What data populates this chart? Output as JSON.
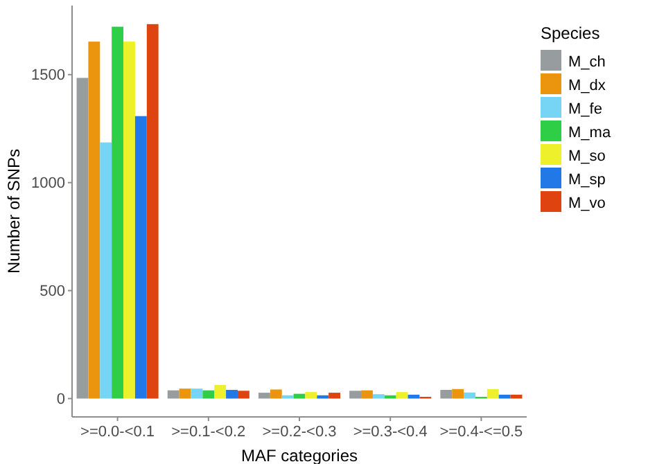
{
  "chart_data": {
    "type": "bar",
    "xlabel": "MAF categories",
    "ylabel": "Number of SNPs",
    "legend_title": "Species",
    "legend": "right",
    "categories": [
      ">=0.0-<0.1",
      ">=0.1-<0.2",
      ">=0.2-<0.3",
      ">=0.3-<0.4",
      ">=0.4-<=0.5"
    ],
    "ylim": [
      -85,
      1820
    ],
    "yticks": [
      0,
      500,
      1000,
      1500
    ],
    "grid": false,
    "series": [
      {
        "name": "M_ch",
        "color": "#979c9e",
        "values": [
          1485,
          38,
          27,
          36,
          40
        ]
      },
      {
        "name": "M_dx",
        "color": "#eb950f",
        "values": [
          1653,
          46,
          42,
          38,
          44
        ]
      },
      {
        "name": "M_fe",
        "color": "#76d5f5",
        "values": [
          1186,
          46,
          15,
          20,
          28
        ]
      },
      {
        "name": "M_ma",
        "color": "#2ecf47",
        "values": [
          1722,
          38,
          22,
          15,
          8
        ]
      },
      {
        "name": "M_so",
        "color": "#eef02c",
        "values": [
          1653,
          63,
          30,
          30,
          44
        ]
      },
      {
        "name": "M_sp",
        "color": "#2178e6",
        "values": [
          1308,
          40,
          15,
          18,
          18
        ]
      },
      {
        "name": "M_vo",
        "color": "#de4310",
        "values": [
          1734,
          36,
          27,
          8,
          18
        ]
      }
    ]
  }
}
